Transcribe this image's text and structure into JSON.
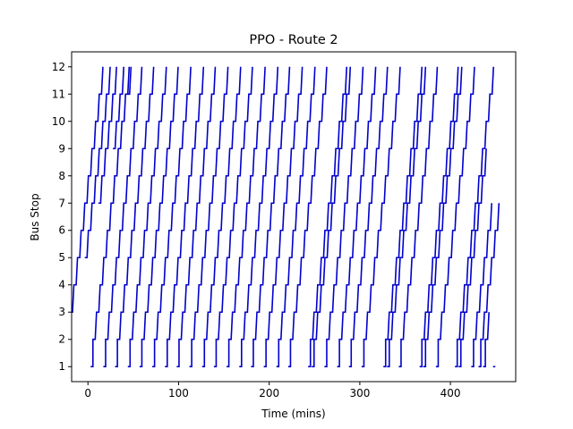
{
  "chart_data": {
    "type": "line",
    "title": "PPO - Route 2",
    "xlabel": "Time (mins)",
    "ylabel": "Bus Stop",
    "xlim": [
      -18,
      472
    ],
    "ylim": [
      0.45,
      12.55
    ],
    "xticks": [
      0,
      100,
      200,
      300,
      400
    ],
    "yticks": [
      1,
      2,
      3,
      4,
      5,
      6,
      7,
      8,
      9,
      10,
      11,
      12
    ],
    "line_color": "#0000cc",
    "grid": false,
    "legend": "none",
    "trip_template": {
      "stop_offsets_min": [
        0,
        2.5,
        6.5,
        10.5,
        14.5,
        18.5,
        22.5,
        26.5,
        30.5,
        34.5,
        38.5,
        42.5
      ],
      "dwell_min": 2.5
    },
    "series": [
      {
        "start": 5,
        "from_stop": 11,
        "to_stop": 12
      },
      {
        "start": -3,
        "from_stop": 9,
        "to_stop": 12
      },
      {
        "start": -11,
        "from_stop": 7,
        "to_stop": 12
      },
      {
        "start": -18,
        "from_stop": 5,
        "to_stop": 12
      },
      {
        "start": -26,
        "from_stop": 3,
        "to_stop": 12
      },
      {
        "start": 3,
        "from_stop": 1,
        "to_stop": 12
      },
      {
        "start": 17,
        "from_stop": 1,
        "to_stop": 12
      },
      {
        "start": 30,
        "from_stop": 1,
        "to_stop": 12
      },
      {
        "start": 44,
        "from_stop": 1,
        "to_stop": 12
      },
      {
        "start": 57,
        "from_stop": 1,
        "to_stop": 12
      },
      {
        "start": 71,
        "from_stop": 1,
        "to_stop": 12
      },
      {
        "start": 85,
        "from_stop": 1,
        "to_stop": 12
      },
      {
        "start": 98,
        "from_stop": 1,
        "to_stop": 12
      },
      {
        "start": 112,
        "from_stop": 1,
        "to_stop": 12
      },
      {
        "start": 126,
        "from_stop": 1,
        "to_stop": 12
      },
      {
        "start": 139,
        "from_stop": 1,
        "to_stop": 12
      },
      {
        "start": 153,
        "from_stop": 1,
        "to_stop": 12
      },
      {
        "start": 167,
        "from_stop": 1,
        "to_stop": 12
      },
      {
        "start": 180,
        "from_stop": 1,
        "to_stop": 12
      },
      {
        "start": 194,
        "from_stop": 1,
        "to_stop": 12
      },
      {
        "start": 208,
        "from_stop": 1,
        "to_stop": 12
      },
      {
        "start": 221,
        "from_stop": 1,
        "to_stop": 12
      },
      {
        "start": 243,
        "from_stop": 1,
        "to_stop": 12
      },
      {
        "start": 247,
        "from_stop": 1,
        "to_stop": 12
      },
      {
        "start": 261,
        "from_stop": 1,
        "to_stop": 12
      },
      {
        "start": 275,
        "from_stop": 1,
        "to_stop": 12
      },
      {
        "start": 288,
        "from_stop": 1,
        "to_stop": 12
      },
      {
        "start": 302,
        "from_stop": 1,
        "to_stop": 12
      },
      {
        "start": 326,
        "from_stop": 1,
        "to_stop": 12
      },
      {
        "start": 330,
        "from_stop": 1,
        "to_stop": 12
      },
      {
        "start": 343,
        "from_stop": 1,
        "to_stop": 12
      },
      {
        "start": 366,
        "from_stop": 1,
        "to_stop": 12
      },
      {
        "start": 370,
        "from_stop": 1,
        "to_stop": 12
      },
      {
        "start": 384,
        "from_stop": 1,
        "to_stop": 12
      },
      {
        "start": 405,
        "from_stop": 1,
        "to_stop": 12
      },
      {
        "start": 409,
        "from_stop": 1,
        "to_stop": 9
      },
      {
        "start": 423,
        "from_stop": 1,
        "to_stop": 7
      },
      {
        "start": 431,
        "from_stop": 1,
        "to_stop": 7
      },
      {
        "start": 436,
        "from_stop": 1,
        "to_stop": 3
      },
      {
        "start": 447,
        "from_stop": 1,
        "to_stop": 1
      }
    ]
  }
}
